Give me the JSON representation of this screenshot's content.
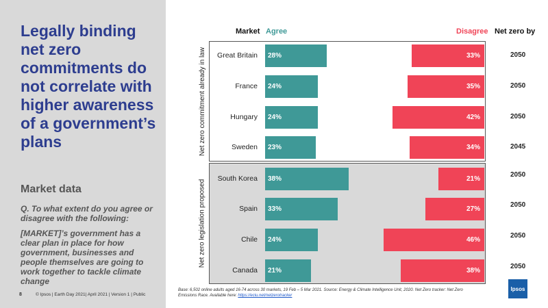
{
  "slide": {
    "headline": "Legally binding net zero commitments do not correlate with higher awareness of a government’s plans",
    "subhead": "Market data",
    "question": "Q. To what extent do you agree or disagree with the following:",
    "statement": "[MARKET]’s government has a clear plan in place for how government, businesses and people themselves are going to work together to tackle climate change",
    "page_number": "8",
    "footer": "© Ipsos | Earth Day 2021| April 2021 | Version 1 | Public",
    "base_note": "Base: 6,502 online adults aged 16-74 across 30 markets,  19 Feb – 5 Mar 2021. Source: Energy & Climate Intelligence Unit, 2020. Net Zero tracker: Net Zero Emissions Race. Available here: ",
    "base_link": "https://eciu.net/netzerotracker",
    "logo_text": "Ipsos"
  },
  "chart_data": {
    "type": "bar",
    "columns": {
      "market": "Market",
      "agree": "Agree",
      "disagree": "Disagree",
      "year": "Net zero by"
    },
    "colors": {
      "agree": "#3f9997",
      "disagree": "#f04457",
      "agree_header": "#3f9997",
      "disagree_header": "#f04457"
    },
    "max_value": 100,
    "groups": [
      {
        "label": "Net zero commitment already in law",
        "shaded": false
      },
      {
        "label": "Net zero legislation proposed",
        "shaded": true
      }
    ],
    "categories": [
      "Great Britain",
      "France",
      "Hungary",
      "Sweden",
      "South Korea",
      "Spain",
      "Chile",
      "Canada"
    ],
    "category_group": [
      0,
      0,
      0,
      0,
      1,
      1,
      1,
      1
    ],
    "series": [
      {
        "name": "Agree",
        "values": [
          28,
          24,
          24,
          23,
          38,
          33,
          24,
          21
        ],
        "labels": [
          "28%",
          "24%",
          "24%",
          "23%",
          "38%",
          "33%",
          "24%",
          "21%"
        ]
      },
      {
        "name": "Disagree",
        "values": [
          33,
          35,
          42,
          34,
          21,
          27,
          46,
          38
        ],
        "labels": [
          "33%",
          "35%",
          "42%",
          "34%",
          "21%",
          "27%",
          "46%",
          "38%"
        ]
      }
    ],
    "net_zero_year": [
      "2050",
      "2050",
      "2050",
      "2045",
      "2050",
      "2050",
      "2050",
      "2050"
    ]
  }
}
